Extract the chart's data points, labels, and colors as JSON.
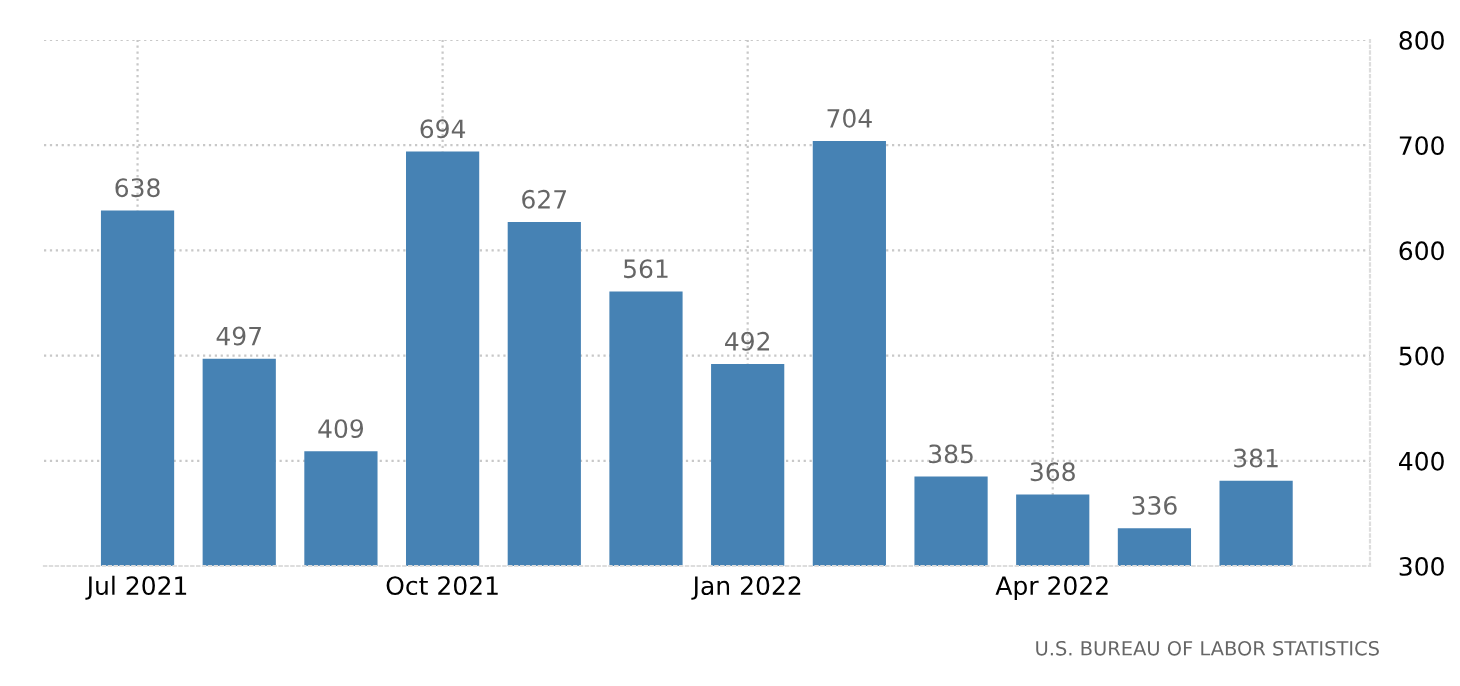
{
  "chart_data": {
    "type": "bar",
    "categories": [
      "Jul 2021",
      null,
      null,
      "Oct 2021",
      null,
      null,
      "Jan 2022",
      null,
      null,
      "Apr 2022",
      null,
      null
    ],
    "values": [
      638,
      497,
      409,
      694,
      627,
      561,
      492,
      704,
      385,
      368,
      336,
      381
    ],
    "color": "#4682b4",
    "ylim": [
      300,
      800
    ],
    "yticks": [
      300,
      400,
      500,
      600,
      700,
      800
    ],
    "grid": true,
    "data_labels": true,
    "annotations": [
      "U.S. BUREAU OF LABOR STATISTICS"
    ]
  }
}
